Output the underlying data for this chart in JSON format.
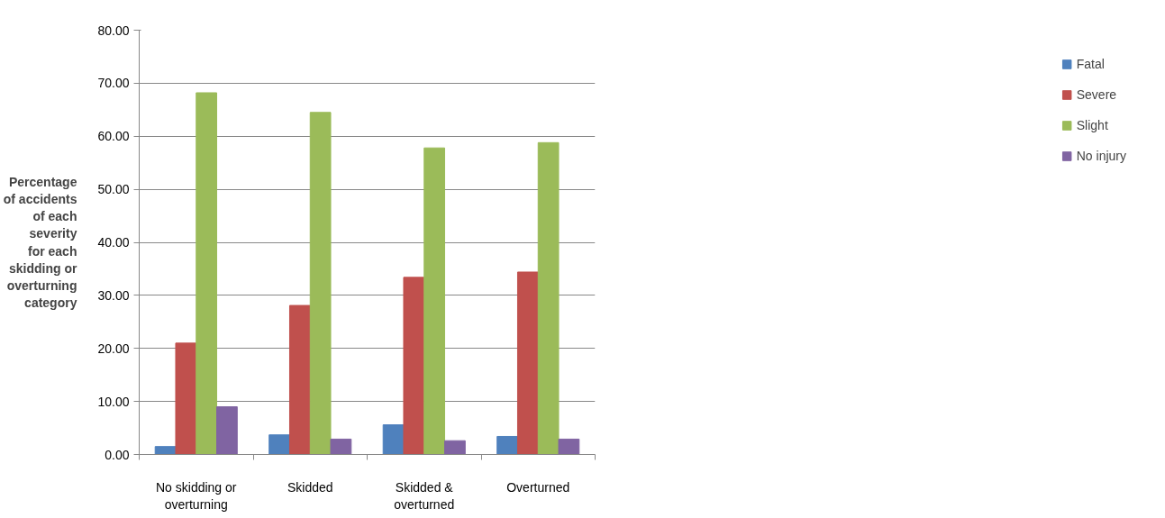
{
  "chart_data": {
    "type": "bar",
    "ylabel": "Percentage\nof accidents\nof each\nseverity\nfor each\nskidding or\noverturning\ncategory",
    "categories": [
      "No skidding or overturning",
      "Skidded",
      "Skidded & overturned",
      "Overturned"
    ],
    "series": [
      {
        "name": "Fatal",
        "color": "#4f81bd",
        "values": [
          1.5,
          3.7,
          5.6,
          3.4
        ]
      },
      {
        "name": "Severe",
        "color": "#c0504d",
        "values": [
          21.0,
          28.1,
          33.4,
          34.4
        ]
      },
      {
        "name": "Slight",
        "color": "#9bbb59",
        "values": [
          68.2,
          64.5,
          57.8,
          58.8
        ]
      },
      {
        "name": "No injury",
        "color": "#8064a2",
        "values": [
          9.0,
          2.9,
          2.6,
          2.9
        ]
      }
    ],
    "ylim": [
      0,
      80
    ],
    "yticks": [
      {
        "value": 0,
        "label": "0.00"
      },
      {
        "value": 10,
        "label": "10.00"
      },
      {
        "value": 20,
        "label": "20.00"
      },
      {
        "value": 30,
        "label": "30.00"
      },
      {
        "value": 40,
        "label": "40.00"
      },
      {
        "value": 50,
        "label": "50.00"
      },
      {
        "value": 60,
        "label": "60.00"
      },
      {
        "value": 70,
        "label": "70.00"
      },
      {
        "value": 80,
        "label": "80.00"
      }
    ],
    "grid": "y",
    "legend": "right"
  }
}
